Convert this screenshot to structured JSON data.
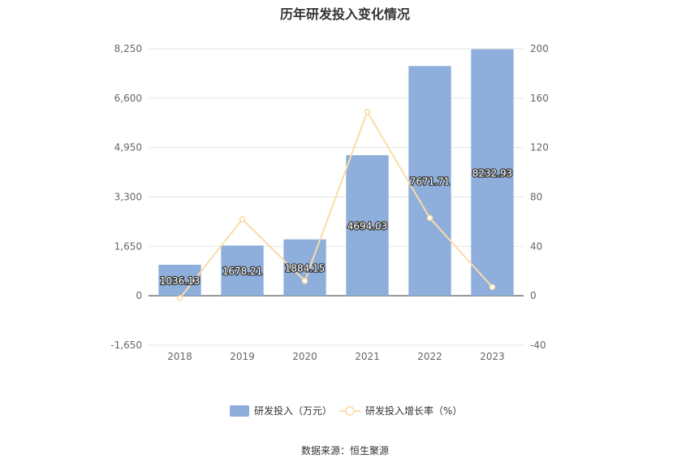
{
  "chart_data": {
    "type": "bar",
    "title": "历年研发投入变化情况",
    "categories": [
      "2018",
      "2019",
      "2020",
      "2021",
      "2022",
      "2023"
    ],
    "series": [
      {
        "name": "研发投入（万元）",
        "type": "bar",
        "axis": "left",
        "color": "#8eaedc",
        "values": [
          1036.13,
          1678.21,
          1884.15,
          4694.03,
          7671.71,
          8232.93
        ],
        "labels": [
          "1036.13",
          "1678.21",
          "1884.15",
          "4694.03",
          "7671.71",
          "8232.93"
        ]
      },
      {
        "name": "研发投入增长率（%）",
        "type": "line",
        "axis": "right",
        "color": "#fbdca6",
        "values": [
          -2,
          62,
          12,
          149,
          63,
          7
        ]
      }
    ],
    "left_axis": {
      "min": -1650,
      "max": 8250,
      "ticks": [
        -1650,
        0,
        1650,
        3300,
        4950,
        6600,
        8250
      ],
      "tick_labels": [
        "-1,650",
        "0",
        "1,650",
        "3,300",
        "4,950",
        "6,600",
        "8,250"
      ]
    },
    "right_axis": {
      "min": -40,
      "max": 200,
      "ticks": [
        -40,
        0,
        40,
        80,
        120,
        160,
        200
      ],
      "tick_labels": [
        "-40",
        "0",
        "40",
        "80",
        "120",
        "160",
        "200"
      ]
    },
    "grid": true,
    "legend_position": "bottom"
  },
  "source_text": "数据来源：恒生聚源"
}
